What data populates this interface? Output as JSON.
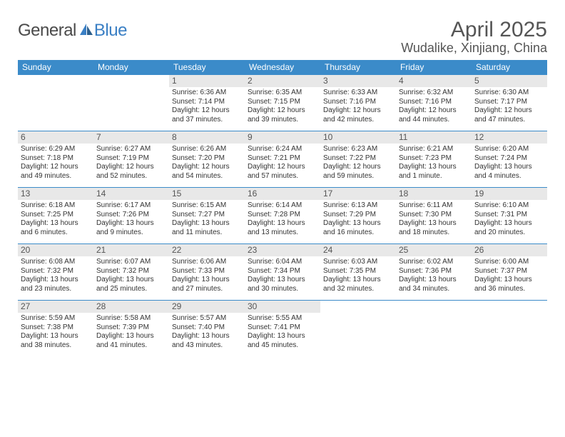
{
  "logo": {
    "general": "General",
    "blue": "Blue"
  },
  "title": "April 2025",
  "location": "Wudalike, Xinjiang, China",
  "colors": {
    "brand_blue": "#3b8bc9",
    "header_bg": "#3b8bc9",
    "daynum_bg": "#e8e8e8",
    "text": "#333333",
    "title_text": "#555555"
  },
  "day_names": [
    "Sunday",
    "Monday",
    "Tuesday",
    "Wednesday",
    "Thursday",
    "Friday",
    "Saturday"
  ],
  "weeks": [
    [
      {
        "n": "",
        "sr": "",
        "ss": "",
        "dl": "",
        "empty": true
      },
      {
        "n": "",
        "sr": "",
        "ss": "",
        "dl": "",
        "empty": true
      },
      {
        "n": "1",
        "sr": "Sunrise: 6:36 AM",
        "ss": "Sunset: 7:14 PM",
        "dl": "Daylight: 12 hours and 37 minutes."
      },
      {
        "n": "2",
        "sr": "Sunrise: 6:35 AM",
        "ss": "Sunset: 7:15 PM",
        "dl": "Daylight: 12 hours and 39 minutes."
      },
      {
        "n": "3",
        "sr": "Sunrise: 6:33 AM",
        "ss": "Sunset: 7:16 PM",
        "dl": "Daylight: 12 hours and 42 minutes."
      },
      {
        "n": "4",
        "sr": "Sunrise: 6:32 AM",
        "ss": "Sunset: 7:16 PM",
        "dl": "Daylight: 12 hours and 44 minutes."
      },
      {
        "n": "5",
        "sr": "Sunrise: 6:30 AM",
        "ss": "Sunset: 7:17 PM",
        "dl": "Daylight: 12 hours and 47 minutes."
      }
    ],
    [
      {
        "n": "6",
        "sr": "Sunrise: 6:29 AM",
        "ss": "Sunset: 7:18 PM",
        "dl": "Daylight: 12 hours and 49 minutes."
      },
      {
        "n": "7",
        "sr": "Sunrise: 6:27 AM",
        "ss": "Sunset: 7:19 PM",
        "dl": "Daylight: 12 hours and 52 minutes."
      },
      {
        "n": "8",
        "sr": "Sunrise: 6:26 AM",
        "ss": "Sunset: 7:20 PM",
        "dl": "Daylight: 12 hours and 54 minutes."
      },
      {
        "n": "9",
        "sr": "Sunrise: 6:24 AM",
        "ss": "Sunset: 7:21 PM",
        "dl": "Daylight: 12 hours and 57 minutes."
      },
      {
        "n": "10",
        "sr": "Sunrise: 6:23 AM",
        "ss": "Sunset: 7:22 PM",
        "dl": "Daylight: 12 hours and 59 minutes."
      },
      {
        "n": "11",
        "sr": "Sunrise: 6:21 AM",
        "ss": "Sunset: 7:23 PM",
        "dl": "Daylight: 13 hours and 1 minute."
      },
      {
        "n": "12",
        "sr": "Sunrise: 6:20 AM",
        "ss": "Sunset: 7:24 PM",
        "dl": "Daylight: 13 hours and 4 minutes."
      }
    ],
    [
      {
        "n": "13",
        "sr": "Sunrise: 6:18 AM",
        "ss": "Sunset: 7:25 PM",
        "dl": "Daylight: 13 hours and 6 minutes."
      },
      {
        "n": "14",
        "sr": "Sunrise: 6:17 AM",
        "ss": "Sunset: 7:26 PM",
        "dl": "Daylight: 13 hours and 9 minutes."
      },
      {
        "n": "15",
        "sr": "Sunrise: 6:15 AM",
        "ss": "Sunset: 7:27 PM",
        "dl": "Daylight: 13 hours and 11 minutes."
      },
      {
        "n": "16",
        "sr": "Sunrise: 6:14 AM",
        "ss": "Sunset: 7:28 PM",
        "dl": "Daylight: 13 hours and 13 minutes."
      },
      {
        "n": "17",
        "sr": "Sunrise: 6:13 AM",
        "ss": "Sunset: 7:29 PM",
        "dl": "Daylight: 13 hours and 16 minutes."
      },
      {
        "n": "18",
        "sr": "Sunrise: 6:11 AM",
        "ss": "Sunset: 7:30 PM",
        "dl": "Daylight: 13 hours and 18 minutes."
      },
      {
        "n": "19",
        "sr": "Sunrise: 6:10 AM",
        "ss": "Sunset: 7:31 PM",
        "dl": "Daylight: 13 hours and 20 minutes."
      }
    ],
    [
      {
        "n": "20",
        "sr": "Sunrise: 6:08 AM",
        "ss": "Sunset: 7:32 PM",
        "dl": "Daylight: 13 hours and 23 minutes."
      },
      {
        "n": "21",
        "sr": "Sunrise: 6:07 AM",
        "ss": "Sunset: 7:32 PM",
        "dl": "Daylight: 13 hours and 25 minutes."
      },
      {
        "n": "22",
        "sr": "Sunrise: 6:06 AM",
        "ss": "Sunset: 7:33 PM",
        "dl": "Daylight: 13 hours and 27 minutes."
      },
      {
        "n": "23",
        "sr": "Sunrise: 6:04 AM",
        "ss": "Sunset: 7:34 PM",
        "dl": "Daylight: 13 hours and 30 minutes."
      },
      {
        "n": "24",
        "sr": "Sunrise: 6:03 AM",
        "ss": "Sunset: 7:35 PM",
        "dl": "Daylight: 13 hours and 32 minutes."
      },
      {
        "n": "25",
        "sr": "Sunrise: 6:02 AM",
        "ss": "Sunset: 7:36 PM",
        "dl": "Daylight: 13 hours and 34 minutes."
      },
      {
        "n": "26",
        "sr": "Sunrise: 6:00 AM",
        "ss": "Sunset: 7:37 PM",
        "dl": "Daylight: 13 hours and 36 minutes."
      }
    ],
    [
      {
        "n": "27",
        "sr": "Sunrise: 5:59 AM",
        "ss": "Sunset: 7:38 PM",
        "dl": "Daylight: 13 hours and 38 minutes."
      },
      {
        "n": "28",
        "sr": "Sunrise: 5:58 AM",
        "ss": "Sunset: 7:39 PM",
        "dl": "Daylight: 13 hours and 41 minutes."
      },
      {
        "n": "29",
        "sr": "Sunrise: 5:57 AM",
        "ss": "Sunset: 7:40 PM",
        "dl": "Daylight: 13 hours and 43 minutes."
      },
      {
        "n": "30",
        "sr": "Sunrise: 5:55 AM",
        "ss": "Sunset: 7:41 PM",
        "dl": "Daylight: 13 hours and 45 minutes."
      },
      {
        "n": "",
        "sr": "",
        "ss": "",
        "dl": "",
        "empty": true
      },
      {
        "n": "",
        "sr": "",
        "ss": "",
        "dl": "",
        "empty": true
      },
      {
        "n": "",
        "sr": "",
        "ss": "",
        "dl": "",
        "empty": true
      }
    ]
  ]
}
